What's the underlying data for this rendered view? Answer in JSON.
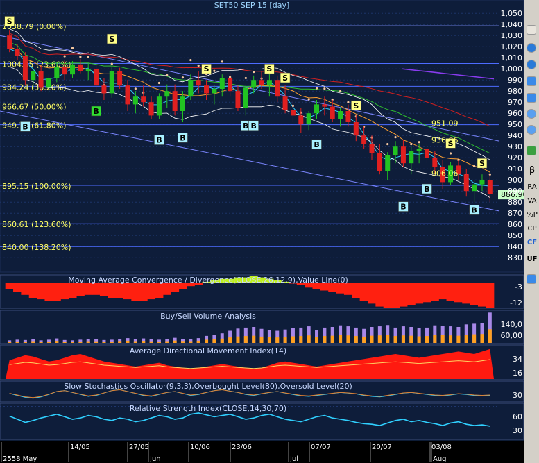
{
  "app": {
    "title": "SET50 SEP 15   [day]"
  },
  "colors": {
    "bg": "#0d1c36",
    "up": "#22c322",
    "down": "#e02020",
    "grid": "#3050a0",
    "label": "#ffff66",
    "price_tag": "#c8ffc8"
  },
  "toolbar": {
    "items": [
      "β",
      "RA",
      "VA",
      "%P",
      "CP",
      "CF",
      "UF"
    ],
    "icon_names": [
      "chevron-up-icon",
      "plus-circle-icon",
      "minus-circle-icon",
      "arrow-left-icon",
      "arrow-right-icon",
      "magnify-plus-icon",
      "magnify-minus-icon",
      "info-icon",
      "ls-icon"
    ]
  },
  "chart_data": [
    {
      "type": "candlestick",
      "title": "SET50 SEP 15   [day]",
      "ylim": [
        822,
        1052
      ],
      "y_ticks": [
        "1,050",
        "1,040",
        "1,030",
        "1,020",
        "1,010",
        "1,000",
        "990",
        "980",
        "970",
        "960",
        "950",
        "940",
        "930",
        "920",
        "910",
        "900",
        "890",
        "880",
        "870",
        "860",
        "850",
        "840",
        "830"
      ],
      "y_tick_values": [
        1050,
        1040,
        1030,
        1020,
        1010,
        1000,
        990,
        980,
        970,
        960,
        950,
        940,
        930,
        920,
        910,
        900,
        890,
        880,
        870,
        860,
        850,
        840,
        830
      ],
      "last_price": "886.90",
      "x_labels": [
        "2558 May",
        "14/05",
        "27/05",
        "Jun",
        "10/06",
        "23/06",
        "Jul",
        "07/07",
        "20/07",
        "03/08",
        "Aug"
      ],
      "fibonacci": [
        {
          "label": "1038.79 (0.00%)",
          "value": 1038.79
        },
        {
          "label": "1004.85 (23.60%)",
          "value": 1004.85
        },
        {
          "label": "984.24 (38.20%)",
          "value": 984.24
        },
        {
          "label": "966.67 (50.00%)",
          "value": 966.67
        },
        {
          "label": "949.70 (61.80%)",
          "value": 949.7
        },
        {
          "label": "895.15 (100.00%)",
          "value": 895.15
        },
        {
          "label": "860.61 (123.60%)",
          "value": 860.61
        },
        {
          "label": "840.00 (138.20%)",
          "value": 840.0
        }
      ],
      "annotations": [
        "951.09",
        "936.06",
        "906.06"
      ],
      "signals": [
        {
          "type": "S",
          "x": 0,
          "y": 1043
        },
        {
          "type": "S",
          "x": 13,
          "y": 1027
        },
        {
          "type": "S",
          "x": 25,
          "y": 1000
        },
        {
          "type": "S",
          "x": 33,
          "y": 1000
        },
        {
          "type": "S",
          "x": 35,
          "y": 992
        },
        {
          "type": "S",
          "x": 44,
          "y": 967
        },
        {
          "type": "S",
          "x": 56,
          "y": 933
        },
        {
          "type": "S",
          "x": 60,
          "y": 915
        },
        {
          "type": "B",
          "x": 2,
          "y": 948
        },
        {
          "type": "B",
          "x": 11,
          "y": 962
        },
        {
          "type": "B",
          "x": 19,
          "y": 936
        },
        {
          "type": "B",
          "x": 22,
          "y": 938
        },
        {
          "type": "B",
          "x": 30,
          "y": 949
        },
        {
          "type": "B",
          "x": 31,
          "y": 949
        },
        {
          "type": "B",
          "x": 39,
          "y": 932
        },
        {
          "type": "B",
          "x": 50,
          "y": 876
        },
        {
          "type": "B",
          "x": 53,
          "y": 892
        },
        {
          "type": "B",
          "x": 59,
          "y": 873
        }
      ],
      "ohlc": [
        [
          1030,
          1035,
          1015,
          1018
        ],
        [
          1018,
          1022,
          1008,
          1012
        ],
        [
          1012,
          1015,
          985,
          990
        ],
        [
          990,
          1000,
          982,
          998
        ],
        [
          998,
          1003,
          980,
          983
        ],
        [
          983,
          995,
          978,
          992
        ],
        [
          992,
          1005,
          988,
          1002
        ],
        [
          1002,
          1008,
          990,
          995
        ],
        [
          995,
          1007,
          992,
          1004
        ],
        [
          1004,
          1009,
          996,
          998
        ],
        [
          998,
          1005,
          990,
          1000
        ],
        [
          1000,
          1004,
          980,
          985
        ],
        [
          985,
          992,
          972,
          978
        ],
        [
          978,
          1002,
          974,
          998
        ],
        [
          998,
          1001,
          982,
          985
        ],
        [
          985,
          990,
          962,
          968
        ],
        [
          968,
          980,
          960,
          975
        ],
        [
          975,
          985,
          966,
          970
        ],
        [
          970,
          975,
          955,
          958
        ],
        [
          958,
          978,
          955,
          975
        ],
        [
          975,
          986,
          965,
          980
        ],
        [
          980,
          986,
          958,
          962
        ],
        [
          962,
          980,
          952,
          975
        ],
        [
          975,
          995,
          972,
          990
        ],
        [
          990,
          998,
          978,
          985
        ],
        [
          985,
          990,
          972,
          978
        ],
        [
          978,
          985,
          968,
          982
        ],
        [
          982,
          995,
          975,
          992
        ],
        [
          992,
          996,
          975,
          980
        ],
        [
          980,
          985,
          962,
          965
        ],
        [
          965,
          985,
          958,
          983
        ],
        [
          983,
          994,
          978,
          990
        ],
        [
          990,
          998,
          982,
          985
        ],
        [
          985,
          995,
          975,
          990
        ],
        [
          990,
          994,
          970,
          975
        ],
        [
          975,
          985,
          960,
          963
        ],
        [
          963,
          972,
          952,
          958
        ],
        [
          958,
          965,
          942,
          950
        ],
        [
          950,
          962,
          945,
          960
        ],
        [
          960,
          972,
          955,
          968
        ],
        [
          968,
          975,
          958,
          966
        ],
        [
          966,
          972,
          952,
          955
        ],
        [
          955,
          965,
          948,
          962
        ],
        [
          962,
          968,
          948,
          952
        ],
        [
          952,
          958,
          935,
          940
        ],
        [
          940,
          948,
          928,
          932
        ],
        [
          932,
          940,
          918,
          924
        ],
        [
          924,
          932,
          905,
          908
        ],
        [
          908,
          925,
          900,
          922
        ],
        [
          922,
          935,
          915,
          930
        ],
        [
          930,
          936,
          912,
          915
        ],
        [
          915,
          930,
          905,
          926
        ],
        [
          926,
          932,
          915,
          928
        ],
        [
          928,
          932,
          915,
          920
        ],
        [
          920,
          926,
          905,
          912
        ],
        [
          912,
          918,
          892,
          898
        ],
        [
          898,
          916,
          895,
          913
        ],
        [
          913,
          918,
          900,
          905
        ],
        [
          905,
          910,
          885,
          890
        ],
        [
          890,
          900,
          880,
          896
        ],
        [
          896,
          905,
          890,
          900
        ],
        [
          900,
          905,
          880,
          887
        ]
      ],
      "rsi_note": "Relative Strength Index(CLOSE,14,30,70)"
    },
    {
      "type": "bar",
      "title": "Moving Average Convergence / Divergence(CLOSE,26,12,9),Value Line(0)",
      "y_ticks": [
        "-3",
        "-12"
      ],
      "values": [
        -4,
        -6,
        -8,
        -10,
        -11,
        -12,
        -12,
        -11,
        -10,
        -9,
        -8,
        -8,
        -9,
        -10,
        -10,
        -11,
        -12,
        -12,
        -11,
        -10,
        -8,
        -6,
        -4,
        -2,
        -1,
        1,
        2,
        3,
        3,
        4,
        4,
        5,
        4,
        3,
        2,
        1,
        0,
        -1,
        -3,
        -4,
        -5,
        -6,
        -7,
        -8,
        -10,
        -12,
        -14,
        -16,
        -17,
        -17,
        -16,
        -15,
        -14,
        -13,
        -12,
        -11,
        -12,
        -13,
        -14,
        -15,
        -16,
        -17
      ]
    },
    {
      "type": "bar",
      "title": "Buy/Sell Volume Analysis",
      "y_ticks": [
        "140,0",
        "60,00"
      ],
      "values": [
        8,
        10,
        9,
        12,
        8,
        10,
        14,
        9,
        8,
        10,
        12,
        11,
        9,
        10,
        13,
        15,
        12,
        14,
        11,
        10,
        12,
        16,
        13,
        12,
        15,
        22,
        26,
        30,
        38,
        45,
        48,
        50,
        44,
        40,
        38,
        42,
        46,
        48,
        52,
        40,
        48,
        50,
        55,
        52,
        48,
        44,
        50,
        52,
        56,
        48,
        52,
        50,
        46,
        48,
        55,
        54,
        52,
        50,
        58,
        60,
        62,
        95
      ]
    },
    {
      "type": "area",
      "title": "Average Directional Movement Index(14)",
      "y_ticks": [
        "34",
        "16"
      ],
      "values": [
        30,
        34,
        38,
        36,
        32,
        28,
        30,
        34,
        38,
        40,
        36,
        32,
        28,
        26,
        24,
        22,
        20,
        22,
        24,
        26,
        22,
        20,
        18,
        16,
        18,
        20,
        22,
        24,
        22,
        20,
        18,
        16,
        18,
        22,
        26,
        28,
        26,
        24,
        22,
        20,
        22,
        24,
        26,
        28,
        30,
        32,
        34,
        36,
        38,
        40,
        38,
        36,
        34,
        36,
        38,
        40,
        42,
        44,
        42,
        40,
        44,
        48
      ]
    },
    {
      "type": "line",
      "title": "Slow Stochastics Oscillator(9,3,3),Overbought Level(80),Oversold Level(20)",
      "y_ticks": [
        "30"
      ],
      "series": [
        {
          "values": [
            40,
            30,
            20,
            15,
            22,
            35,
            50,
            55,
            45,
            35,
            25,
            30,
            42,
            55,
            60,
            50,
            40,
            30,
            25,
            35,
            45,
            50,
            40,
            30,
            35,
            45,
            55,
            60,
            52,
            45,
            35,
            30,
            38,
            45,
            50,
            42,
            35,
            28,
            25,
            30,
            35,
            40,
            45,
            42,
            38,
            30,
            25,
            22,
            28,
            35,
            42,
            45,
            40,
            35,
            30,
            28,
            32,
            38,
            35,
            30,
            28,
            30
          ]
        }
      ]
    },
    {
      "type": "line",
      "title": "Relative Strength Index(CLOSE,14,30,70)",
      "y_ticks": [
        "60",
        "30"
      ],
      "series": [
        {
          "values": [
            45,
            40,
            35,
            38,
            42,
            45,
            48,
            44,
            40,
            42,
            46,
            44,
            40,
            38,
            42,
            40,
            36,
            38,
            42,
            46,
            44,
            40,
            42,
            48,
            50,
            47,
            44,
            46,
            48,
            44,
            40,
            42,
            46,
            48,
            44,
            40,
            38,
            36,
            40,
            44,
            46,
            42,
            40,
            38,
            35,
            33,
            32,
            30,
            34,
            38,
            40,
            36,
            38,
            35,
            33,
            30,
            34,
            36,
            32,
            30,
            31,
            29
          ]
        }
      ]
    }
  ]
}
